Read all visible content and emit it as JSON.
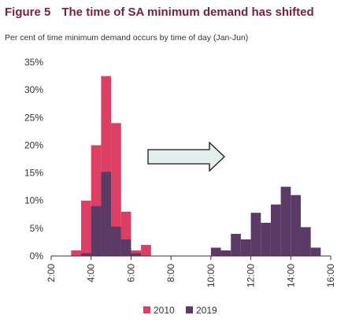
{
  "header": {
    "figure_number": "Figure 5",
    "title": "The time of SA minimum demand has shifted",
    "subtitle": "Per cent of time minimum demand occurs by time of day (Jan-Jun)"
  },
  "chart_data": {
    "type": "bar",
    "title": "The time of SA minimum demand has shifted",
    "subtitle": "Per cent of time minimum demand occurs by time of day (Jan-Jun)",
    "xlabel": "",
    "ylabel": "",
    "x_range_hours": [
      2,
      16
    ],
    "ylim": [
      0,
      35
    ],
    "yticks": [
      0,
      5,
      10,
      15,
      20,
      25,
      30,
      35
    ],
    "ytick_labels": [
      "0%",
      "5%",
      "10%",
      "15%",
      "20%",
      "25%",
      "30%",
      "35%"
    ],
    "xticks": [
      2,
      4,
      6,
      8,
      10,
      12,
      14,
      16
    ],
    "xtick_labels": [
      "2:00",
      "4:00",
      "6:00",
      "8:00",
      "10:00",
      "12:00",
      "14:00",
      "16:00"
    ],
    "bin_width_hours": 0.5,
    "grid": false,
    "legend_position": "bottom",
    "series": [
      {
        "name": "2010",
        "color": "#dc3f63",
        "x": [
          3.0,
          3.5,
          4.0,
          4.5,
          5.0,
          5.5,
          6.0,
          6.5
        ],
        "values": [
          1.0,
          10.0,
          20.0,
          32.5,
          24.0,
          8.0,
          1.0,
          2.0
        ]
      },
      {
        "name": "2019",
        "color": "#5c3a66",
        "x": [
          3.5,
          4.0,
          4.5,
          5.0,
          5.5,
          6.0,
          10.0,
          10.5,
          11.0,
          11.5,
          12.0,
          12.5,
          13.0,
          13.5,
          14.0,
          14.5,
          15.0
        ],
        "values": [
          0.5,
          9.0,
          15.2,
          5.3,
          3.0,
          0.5,
          1.5,
          1.0,
          4.0,
          3.0,
          7.8,
          6.0,
          9.3,
          12.5,
          11.0,
          5.2,
          1.5
        ]
      }
    ],
    "annotations": [
      {
        "type": "arrow",
        "direction": "right",
        "fill": "#e3edec",
        "stroke": "#1a1a1a"
      }
    ]
  }
}
